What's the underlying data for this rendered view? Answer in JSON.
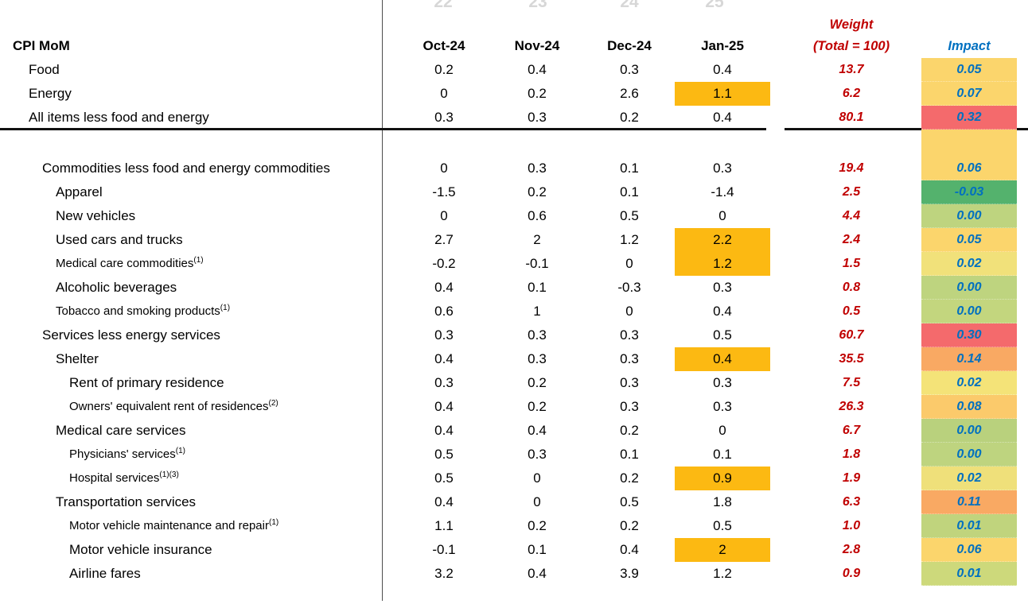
{
  "ghost_years": [
    "22",
    "23",
    "24",
    "25"
  ],
  "header": {
    "row_label": "CPI MoM",
    "months": [
      "Oct-24",
      "Nov-24",
      "Dec-24",
      "Jan-25"
    ],
    "weight_line1": "Weight",
    "weight_line2": "(Total = 100)",
    "impact": "Impact"
  },
  "colors": {
    "jan_highlight": "#fcb912",
    "weight_text": "#c00000",
    "impact_text": "#0070c0"
  },
  "table": {
    "rows": [
      {
        "label": "Food",
        "sup": "",
        "indent": 0,
        "vals": [
          "0.2",
          "0.4",
          "0.3",
          "0.4"
        ],
        "jan_highlight": false,
        "weight": "13.7",
        "impact": "0.05",
        "impact_color": "#fbd56c"
      },
      {
        "label": "Energy",
        "sup": "",
        "indent": 0,
        "vals": [
          "0",
          "0.2",
          "2.6",
          "1.1"
        ],
        "jan_highlight": true,
        "weight": "6.2",
        "impact": "0.07",
        "impact_color": "#fbd56c"
      },
      {
        "label": "All items less food and energy",
        "sup": "",
        "indent": 0,
        "vals": [
          "0.3",
          "0.3",
          "0.2",
          "0.4"
        ],
        "jan_highlight": false,
        "weight": "80.1",
        "impact": "0.32",
        "impact_color": "#f46a6c"
      },
      {
        "label": "Commodities less food and energy commodities",
        "sup": "",
        "indent": 1,
        "vals": [
          "0",
          "0.3",
          "0.1",
          "0.3"
        ],
        "jan_highlight": false,
        "weight": "19.4",
        "impact": "0.06",
        "impact_color": "#fbd56c"
      },
      {
        "label": "Apparel",
        "sup": "",
        "indent": 2,
        "vals": [
          "-1.5",
          "0.2",
          "0.1",
          "-1.4"
        ],
        "jan_highlight": false,
        "weight": "2.5",
        "impact": "-0.03",
        "impact_color": "#54b26d"
      },
      {
        "label": "New vehicles",
        "sup": "",
        "indent": 2,
        "vals": [
          "0",
          "0.6",
          "0.5",
          "0"
        ],
        "jan_highlight": false,
        "weight": "4.4",
        "impact": "0.00",
        "impact_color": "#bed47f"
      },
      {
        "label": "Used cars and trucks",
        "sup": "",
        "indent": 2,
        "vals": [
          "2.7",
          "2",
          "1.2",
          "2.2"
        ],
        "jan_highlight": true,
        "weight": "2.4",
        "impact": "0.05",
        "impact_color": "#fbd56c"
      },
      {
        "label": "Medical care commodities",
        "sup": "(1)",
        "indent": 2,
        "vals": [
          "-0.2",
          "-0.1",
          "0",
          "1.2"
        ],
        "jan_highlight": true,
        "weight": "1.5",
        "impact": "0.02",
        "impact_color": "#f1e17a"
      },
      {
        "label": "Alcoholic beverages",
        "sup": "",
        "indent": 2,
        "vals": [
          "0.4",
          "0.1",
          "-0.3",
          "0.3"
        ],
        "jan_highlight": false,
        "weight": "0.8",
        "impact": "0.00",
        "impact_color": "#bed47f"
      },
      {
        "label": "Tobacco and smoking products",
        "sup": "(1)",
        "indent": 2,
        "vals": [
          "0.6",
          "1",
          "0",
          "0.4"
        ],
        "jan_highlight": false,
        "weight": "0.5",
        "impact": "0.00",
        "impact_color": "#c3d67e"
      },
      {
        "label": "Services less energy services",
        "sup": "",
        "indent": 1,
        "vals": [
          "0.3",
          "0.3",
          "0.3",
          "0.5"
        ],
        "jan_highlight": false,
        "weight": "60.7",
        "impact": "0.30",
        "impact_color": "#f46a6c"
      },
      {
        "label": "Shelter",
        "sup": "",
        "indent": 2,
        "vals": [
          "0.4",
          "0.3",
          "0.3",
          "0.4"
        ],
        "jan_highlight": true,
        "weight": "35.5",
        "impact": "0.14",
        "impact_color": "#f9a963"
      },
      {
        "label": "Rent of primary residence",
        "sup": "",
        "indent": 3,
        "vals": [
          "0.3",
          "0.2",
          "0.3",
          "0.3"
        ],
        "jan_highlight": false,
        "weight": "7.5",
        "impact": "0.02",
        "impact_color": "#f4e378"
      },
      {
        "label": "Owners' equivalent rent of residences",
        "sup": "(2)",
        "indent": 3,
        "vals": [
          "0.4",
          "0.2",
          "0.3",
          "0.3"
        ],
        "jan_highlight": false,
        "weight": "26.3",
        "impact": "0.08",
        "impact_color": "#fbca6b"
      },
      {
        "label": "Medical care services",
        "sup": "",
        "indent": 2,
        "vals": [
          "0.4",
          "0.4",
          "0.2",
          "0"
        ],
        "jan_highlight": false,
        "weight": "6.7",
        "impact": "0.00",
        "impact_color": "#b9d17d"
      },
      {
        "label": "Physicians' services",
        "sup": "(1)",
        "indent": 3,
        "vals": [
          "0.5",
          "0.3",
          "0.1",
          "0.1"
        ],
        "jan_highlight": false,
        "weight": "1.8",
        "impact": "0.00",
        "impact_color": "#bed47f"
      },
      {
        "label": "Hospital services",
        "sup": "(1)(3)",
        "indent": 3,
        "vals": [
          "0.5",
          "0",
          "0.2",
          "0.9"
        ],
        "jan_highlight": true,
        "weight": "1.9",
        "impact": "0.02",
        "impact_color": "#efe07a"
      },
      {
        "label": "Transportation services",
        "sup": "",
        "indent": 2,
        "vals": [
          "0.4",
          "0",
          "0.5",
          "1.8"
        ],
        "jan_highlight": false,
        "weight": "6.3",
        "impact": "0.11",
        "impact_color": "#f9a963"
      },
      {
        "label": "Motor vehicle maintenance and repair",
        "sup": "(1)",
        "indent": 3,
        "vals": [
          "1.1",
          "0.2",
          "0.2",
          "0.5"
        ],
        "jan_highlight": false,
        "weight": "1.0",
        "impact": "0.01",
        "impact_color": "#c0d47d"
      },
      {
        "label": "Motor vehicle insurance",
        "sup": "",
        "indent": 3,
        "vals": [
          "-0.1",
          "0.1",
          "0.4",
          "2"
        ],
        "jan_highlight": true,
        "weight": "2.8",
        "impact": "0.06",
        "impact_color": "#fbd56c"
      },
      {
        "label": "Airline fares",
        "sup": "",
        "indent": 3,
        "vals": [
          "3.2",
          "0.4",
          "3.9",
          "1.2"
        ],
        "jan_highlight": false,
        "weight": "0.9",
        "impact": "0.01",
        "impact_color": "#cdd97b"
      }
    ]
  }
}
